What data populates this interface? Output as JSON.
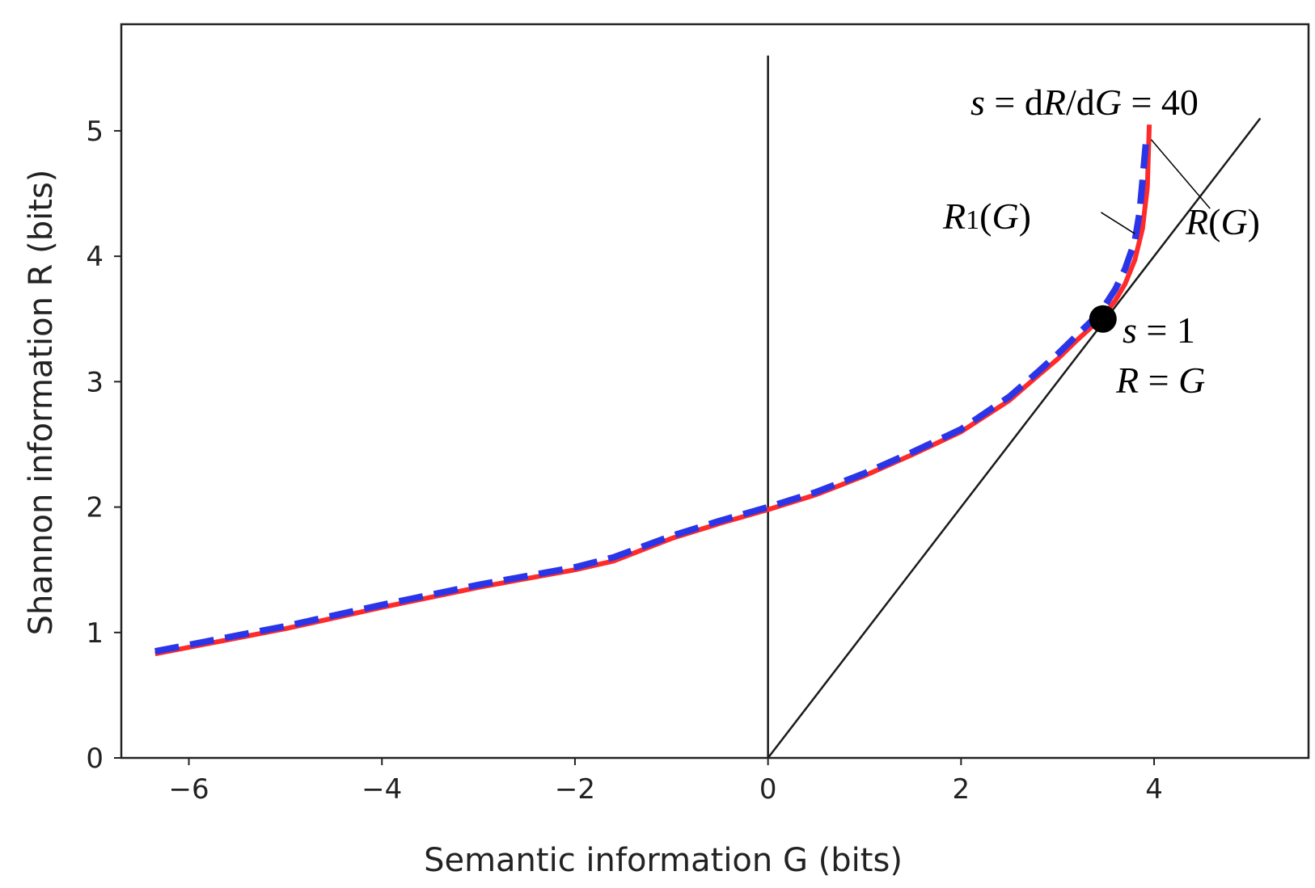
{
  "chart_data": {
    "type": "line",
    "xlabel": "Semantic information G (bits)",
    "ylabel": "Shannon information R (bits)",
    "xlim": [
      -6.7,
      5.6
    ],
    "ylim": [
      0,
      5.85
    ],
    "xticks": [
      -6,
      -4,
      -2,
      0,
      2,
      4
    ],
    "xtick_labels": [
      "−6",
      "−4",
      "−2",
      "0",
      "2",
      "4"
    ],
    "yticks": [
      0,
      1,
      2,
      3,
      4,
      5
    ],
    "ytick_labels": [
      "0",
      "1",
      "2",
      "3",
      "4",
      "5"
    ],
    "grid": false,
    "series": [
      {
        "name": "R(G)",
        "color": "#ff2a2a",
        "style": "solid",
        "x": [
          -6.35,
          -5.0,
          -4.0,
          -3.0,
          -2.0,
          -1.6,
          -1.0,
          -0.5,
          0.0,
          0.5,
          1.0,
          1.5,
          2.0,
          2.5,
          2.8,
          3.0,
          3.2,
          3.4,
          3.5,
          3.6,
          3.7,
          3.8,
          3.88,
          3.93,
          3.95
        ],
        "y": [
          0.83,
          1.03,
          1.2,
          1.36,
          1.5,
          1.57,
          1.75,
          1.87,
          1.98,
          2.1,
          2.25,
          2.42,
          2.6,
          2.85,
          3.05,
          3.18,
          3.33,
          3.47,
          3.55,
          3.65,
          3.78,
          3.97,
          4.22,
          4.55,
          5.05
        ]
      },
      {
        "name": "R1(G)",
        "color": "#2a35e8",
        "style": "dashed",
        "x": [
          -6.35,
          -5.0,
          -4.0,
          -3.0,
          -2.0,
          -1.6,
          -1.0,
          -0.5,
          0.0,
          0.5,
          1.0,
          1.5,
          2.0,
          2.5,
          2.8,
          3.0,
          3.2,
          3.4,
          3.5,
          3.6,
          3.7,
          3.8,
          3.85,
          3.88,
          3.92
        ],
        "y": [
          0.85,
          1.05,
          1.22,
          1.38,
          1.52,
          1.6,
          1.77,
          1.89,
          2.0,
          2.12,
          2.27,
          2.44,
          2.62,
          2.88,
          3.08,
          3.22,
          3.37,
          3.52,
          3.62,
          3.74,
          3.9,
          4.12,
          4.35,
          4.6,
          4.95
        ]
      }
    ],
    "reference_lines": [
      {
        "name": "vertical-line-g-zero",
        "x1": 0,
        "y1": 0,
        "x2": 0,
        "y2": 5.6,
        "color": "#1a1a1a"
      },
      {
        "name": "diagonal-line-r-equals-g",
        "x1": 0,
        "y1": 0,
        "x2": 5.1,
        "y2": 5.1,
        "color": "#1a1a1a"
      }
    ],
    "tangent_point": {
      "x": 3.47,
      "y": 3.5,
      "color": "#000000"
    },
    "leader_lines": [
      {
        "name": "leader-r-of-g",
        "x1": 3.97,
        "y1": 4.93,
        "x2": 4.58,
        "y2": 4.38
      },
      {
        "name": "leader-r1-of-g",
        "x1": 3.45,
        "y1": 4.35,
        "x2": 3.8,
        "y2": 4.18
      }
    ],
    "annotations": {
      "slope_top": {
        "s": "s",
        "eq1": " = d",
        "r": "R",
        "slash": "/d",
        "g": "G",
        "eq2": " = 40"
      },
      "r_of_g": {
        "r": "R",
        "open": "(",
        "g": "G",
        "close": ")"
      },
      "r1_of_g": {
        "r": "R",
        "sub": "1",
        "open": "(",
        "g": "G",
        "close": ")"
      },
      "s_one": {
        "s": "s",
        "rest": " = 1"
      },
      "r_eq_g": {
        "r": "R",
        "eq": " = ",
        "g": "G"
      }
    }
  }
}
